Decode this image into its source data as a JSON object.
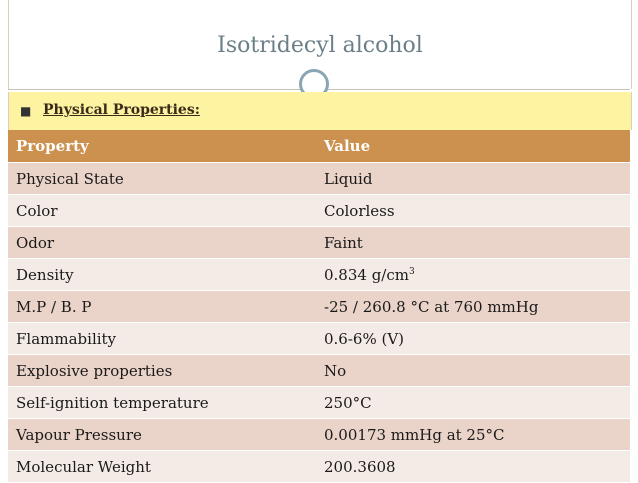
{
  "slide": {
    "title": "Isotridecyl alcohol",
    "bullet": "Physical Properties:",
    "bullet_icon": "square-bullet-icon"
  },
  "table": {
    "headers": [
      "Property",
      "Value"
    ],
    "rows": [
      {
        "property": "Physical State",
        "value": "Liquid"
      },
      {
        "property": "Color",
        "value": "Colorless"
      },
      {
        "property": "Odor",
        "value": "Faint"
      },
      {
        "property": "Density",
        "value": "0.834 g/cm",
        "value_sup": "3"
      },
      {
        "property": "M.P / B. P",
        "value": "-25 / 260.8 °C at 760 mmHg"
      },
      {
        "property": "Flammability",
        "value": "0.6-6% (V)"
      },
      {
        "property": "Explosive properties",
        "value": "No"
      },
      {
        "property": "Self-ignition temperature",
        "value": "250°C"
      },
      {
        "property": "Vapour Pressure",
        "value": "0.00173 mmHg at 25°C"
      },
      {
        "property": "Molecular Weight",
        "value": "200.3608"
      }
    ]
  },
  "colors": {
    "header": "#cc904f",
    "row_odd": "#ead3c8",
    "row_even": "#f5ebe6",
    "bullet_bar": "#fdf3a0",
    "title": "#6b7f88"
  }
}
